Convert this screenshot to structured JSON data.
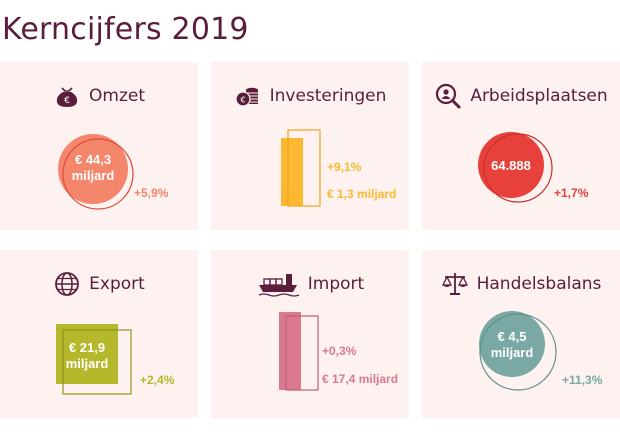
{
  "page": {
    "title": "Kerncijfers 2019"
  },
  "colors": {
    "title": "#5a1e3c",
    "card_bg": "#fdf2ef",
    "omzet": "#f4866b",
    "investeringen": "#fbb830",
    "arbeidsplaatsen": "#e8413c",
    "export": "#b4b82a",
    "import": "#d97a90",
    "handelsbalans": "#7aa9a5"
  },
  "cards": {
    "omzet": {
      "title": "Omzet",
      "icon": "money-bag-euro-icon",
      "value": "€ 44,3 miljard",
      "value_line1": "€ 44,3",
      "value_line2": "miljard",
      "change": "+5,9%"
    },
    "investeringen": {
      "title": "Investeringen",
      "icon": "coins-euro-icon",
      "change": "+9,1%",
      "value": "€ 1,3 miljard"
    },
    "arbeidsplaatsen": {
      "title": "Arbeidsplaatsen",
      "icon": "search-person-icon",
      "value": "64.888",
      "change": "+1,7%"
    },
    "export": {
      "title": "Export",
      "icon": "globe-icon",
      "value": "€ 21,9 miljard",
      "value_line1": "€ 21,9",
      "value_line2": "miljard",
      "change": "+2,4%"
    },
    "import": {
      "title": "Import",
      "icon": "cargo-ship-icon",
      "change": "+0,3%",
      "value": "€ 17,4 miljard"
    },
    "handelsbalans": {
      "title": "Handelsbalans",
      "icon": "balance-scale-icon",
      "value": "€ 4,5 miljard",
      "value_line1": "€ 4,5",
      "value_line2": "miljard",
      "change": "+11,3%"
    }
  }
}
